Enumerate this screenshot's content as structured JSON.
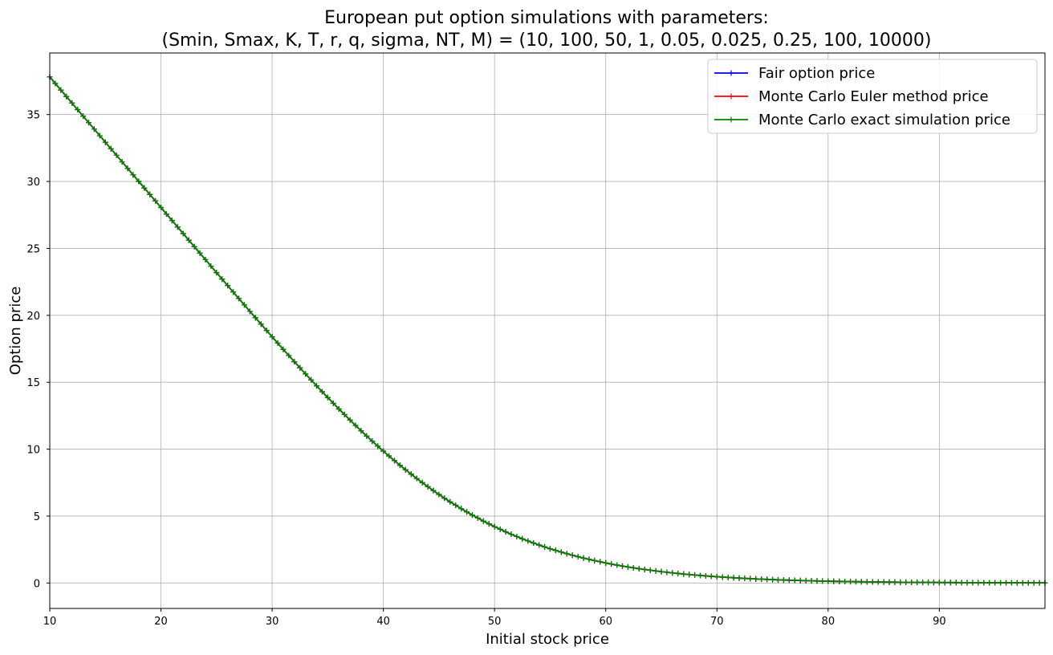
{
  "chart_data": {
    "type": "line",
    "title": "European put option simulations with parameters:",
    "subtitle": "(Smin, Smax, K, T, r, q, sigma, NT, M) = (10, 100, 50, 1, 0.05, 0.025, 0.25, 100, 10000)",
    "xlabel": "Initial stock price",
    "ylabel": "Option price",
    "xlim": [
      10,
      99.5
    ],
    "ylim": [
      -1.9,
      39.6
    ],
    "xticks": [
      10,
      20,
      30,
      40,
      50,
      60,
      70,
      80,
      90
    ],
    "yticks": [
      0,
      5,
      10,
      15,
      20,
      25,
      30,
      35
    ],
    "grid": true,
    "legend_position": "top-right",
    "marker": "+",
    "x": {
      "start": 10,
      "stop": 99.5,
      "step": 0.5
    },
    "series": [
      {
        "name": "Fair option price",
        "color": "#0000ff"
      },
      {
        "name": "Monte Carlo Euler method price",
        "color": "#ff0000"
      },
      {
        "name": "Monte Carlo exact simulation price",
        "color": "#008000"
      }
    ],
    "model": {
      "K": 50,
      "T": 1,
      "r": 0.05,
      "q": 0.025,
      "sigma": 0.25
    },
    "sample_values": [
      {
        "x": 10,
        "y": 37.8
      },
      {
        "x": 20,
        "y": 27.97
      },
      {
        "x": 30,
        "y": 18.36
      },
      {
        "x": 40,
        "y": 9.85
      },
      {
        "x": 50,
        "y": 4.17
      },
      {
        "x": 60,
        "y": 1.44
      },
      {
        "x": 70,
        "y": 0.43
      },
      {
        "x": 80,
        "y": 0.12
      },
      {
        "x": 90,
        "y": 0.03
      },
      {
        "x": 99.5,
        "y": 0.01
      }
    ]
  }
}
